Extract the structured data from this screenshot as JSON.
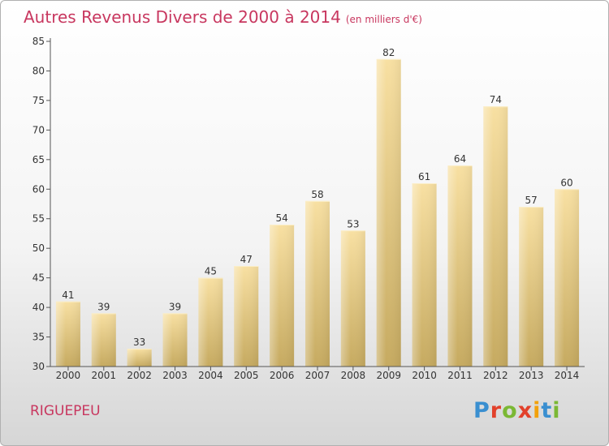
{
  "header": {
    "title": "Autres Revenus Divers de 2000 à 2014",
    "subtitle": "(en milliers d'€)"
  },
  "footer": {
    "commune": "RIGUEPEU",
    "logo_text": "Proxiti"
  },
  "colors": {
    "title": "#c8375f",
    "bar_light": "#f7dd9c",
    "bar_dark": "#c8ad62",
    "axis": "#555555"
  },
  "chart_data": {
    "type": "bar",
    "title": "Autres Revenus Divers de 2000 à 2014",
    "subtitle": "(en milliers d'€)",
    "categories": [
      "2000",
      "2001",
      "2002",
      "2003",
      "2004",
      "2005",
      "2006",
      "2007",
      "2008",
      "2009",
      "2010",
      "2011",
      "2012",
      "2013",
      "2014"
    ],
    "values": [
      41,
      39,
      33,
      39,
      45,
      47,
      54,
      58,
      53,
      82,
      61,
      64,
      74,
      57,
      60
    ],
    "ylim": [
      30,
      85
    ],
    "yticks": [
      30,
      35,
      40,
      45,
      50,
      55,
      60,
      65,
      70,
      75,
      80,
      85
    ],
    "grid": false,
    "xlabel": "",
    "ylabel": ""
  }
}
